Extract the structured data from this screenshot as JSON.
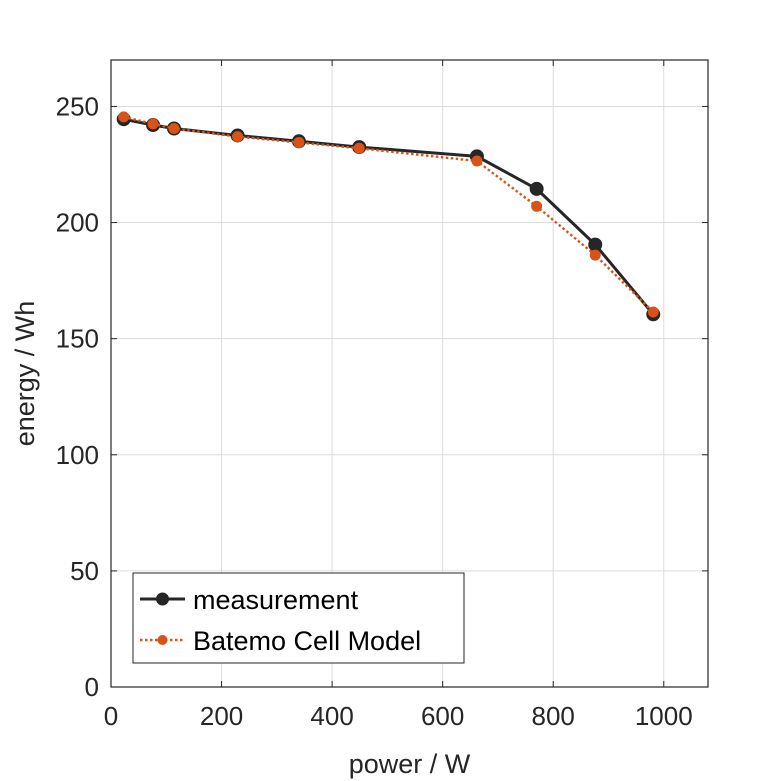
{
  "chart_data": {
    "type": "line",
    "xlabel": "power / W",
    "ylabel": "energy / Wh",
    "xlim": [
      0,
      1080
    ],
    "ylim": [
      0,
      270
    ],
    "xticks": [
      0,
      200,
      400,
      600,
      800,
      1000
    ],
    "yticks": [
      0,
      50,
      100,
      150,
      200,
      250
    ],
    "grid": true,
    "legend_position": "bottom-left",
    "series": [
      {
        "name": "measurement",
        "color": "#262626",
        "line_style": "solid",
        "marker": "circle",
        "points": [
          {
            "x": 23,
            "y": 244.5
          },
          {
            "x": 76,
            "y": 242
          },
          {
            "x": 114,
            "y": 240.5
          },
          {
            "x": 229,
            "y": 237.5
          },
          {
            "x": 340,
            "y": 235
          },
          {
            "x": 449,
            "y": 232.5
          },
          {
            "x": 662,
            "y": 228.5
          },
          {
            "x": 770,
            "y": 214.5
          },
          {
            "x": 876,
            "y": 190.5
          },
          {
            "x": 981,
            "y": 160.5
          }
        ]
      },
      {
        "name": "Batemo Cell Model",
        "color": "#d95319",
        "line_style": "dotted",
        "marker": "circle",
        "points": [
          {
            "x": 23,
            "y": 245.5
          },
          {
            "x": 76,
            "y": 242.5
          },
          {
            "x": 114,
            "y": 240.5
          },
          {
            "x": 229,
            "y": 237
          },
          {
            "x": 340,
            "y": 234.5
          },
          {
            "x": 449,
            "y": 232
          },
          {
            "x": 662,
            "y": 226.5
          },
          {
            "x": 770,
            "y": 207
          },
          {
            "x": 876,
            "y": 186
          },
          {
            "x": 981,
            "y": 161.5
          }
        ]
      }
    ]
  }
}
